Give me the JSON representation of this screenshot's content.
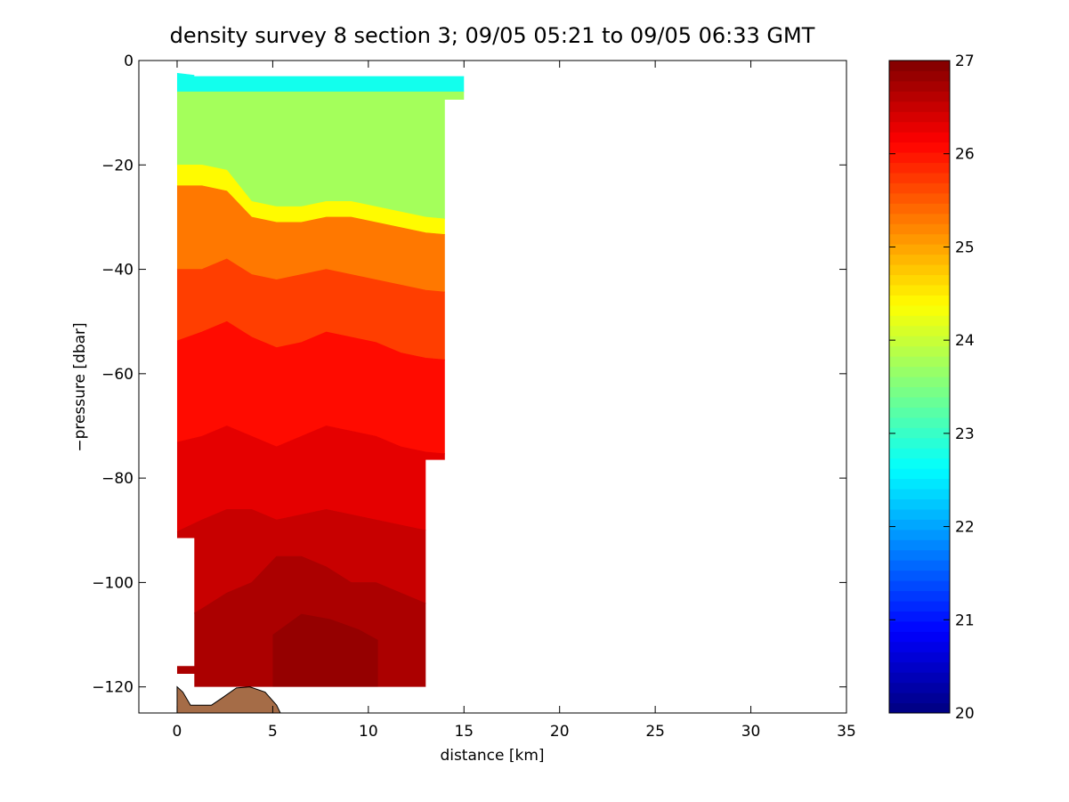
{
  "chart_data": {
    "type": "heatmap",
    "title": "density survey 8 section 3; 09/05 05:21 to 09/05 06:33 GMT",
    "xlabel": "distance [km]",
    "ylabel": "−pressure [dbar]",
    "xlim": [
      -2,
      35
    ],
    "ylim": [
      -125,
      0
    ],
    "xticks": [
      0,
      5,
      10,
      15,
      20,
      25,
      30,
      35
    ],
    "yticks": [
      0,
      -20,
      -40,
      -60,
      -80,
      -100,
      -120
    ],
    "ytick_labels": [
      "0",
      "−20",
      "−40",
      "−60",
      "−80",
      "−100",
      "−120"
    ],
    "grid": false,
    "colorbar": {
      "colormap": "jet",
      "min": 20,
      "max": 27,
      "ticks": [
        20,
        21,
        22,
        23,
        24,
        25,
        26,
        27
      ]
    },
    "density_field": {
      "x_km": [
        0.0,
        1.3,
        2.6,
        3.9,
        5.2,
        6.5,
        7.8,
        9.1,
        10.4,
        11.7,
        13.0,
        14.0
      ],
      "layers": [
        {
          "sigma": 22.75,
          "top_depth": [
            -2,
            -3,
            -3,
            -3,
            -3,
            -3,
            -3,
            -3,
            -3,
            -3,
            -3,
            -3
          ],
          "bottom_depth": [
            -6,
            -6,
            -6,
            -6,
            -6,
            -6,
            -6,
            -6,
            -6,
            -6,
            -6,
            -6
          ]
        },
        {
          "sigma": 23.75,
          "top_depth": [
            -6,
            -6,
            -6,
            -6,
            -6,
            -6,
            -6,
            -6,
            -6,
            -6,
            -6,
            -6
          ],
          "bottom_depth": [
            -20,
            -20,
            -21,
            -27,
            -28,
            -28,
            -27,
            -27,
            -28,
            -29,
            -30,
            -31
          ]
        },
        {
          "sigma": 24.4,
          "top_depth": [
            -20,
            -20,
            -21,
            -27,
            -28,
            -28,
            -27,
            -27,
            -28,
            -29,
            -30,
            -31
          ],
          "bottom_depth": [
            -24,
            -24,
            -25,
            -30,
            -31,
            -31,
            -30,
            -30,
            -31,
            -32,
            -33,
            -34
          ]
        },
        {
          "sigma": 25.3,
          "top_depth": [
            -24,
            -24,
            -25,
            -30,
            -31,
            -31,
            -30,
            -30,
            -31,
            -32,
            -33,
            -34
          ],
          "bottom_depth": [
            -40,
            -40,
            -38,
            -41,
            -42,
            -41,
            -40,
            -41,
            -42,
            -43,
            -44,
            -45
          ]
        },
        {
          "sigma": 25.7,
          "top_depth": [
            -40,
            -40,
            -38,
            -41,
            -42,
            -41,
            -40,
            -41,
            -42,
            -43,
            -44,
            -45
          ],
          "bottom_depth": [
            -55,
            -52,
            -50,
            -53,
            -55,
            -54,
            -52,
            -53,
            -54,
            -56,
            -57,
            -58
          ]
        },
        {
          "sigma": 26.05,
          "top_depth": [
            -55,
            -52,
            -50,
            -53,
            -55,
            -54,
            -52,
            -53,
            -54,
            -56,
            -57,
            -58
          ],
          "bottom_depth": [
            -74,
            -72,
            -70,
            -72,
            -74,
            -72,
            -70,
            -71,
            -72,
            -74,
            -75,
            -76
          ]
        },
        {
          "sigma": 26.3,
          "top_depth": [
            -74,
            -72,
            -70,
            -72,
            -74,
            -72,
            -70,
            -71,
            -72,
            -74,
            -75,
            -76
          ],
          "bottom_depth": [
            -92,
            -88,
            -86,
            -86,
            -88,
            -87,
            -86,
            -87,
            -88,
            -89,
            -90,
            -92
          ]
        },
        {
          "sigma": 26.5,
          "top_depth": [
            -92,
            -88,
            -86,
            -86,
            -88,
            -87,
            -86,
            -87,
            -88,
            -89,
            -90,
            -92
          ],
          "bottom_depth": [
            -110,
            -105,
            -102,
            -100,
            -95,
            -95,
            -97,
            -100,
            -100,
            -102,
            -104,
            -108
          ]
        },
        {
          "sigma": 26.7,
          "top_depth": [
            -110,
            -105,
            -102,
            -100,
            -95,
            -95,
            -97,
            -100,
            -100,
            -102,
            -104,
            -108
          ],
          "bottom_depth": [
            -120,
            -120,
            -120,
            -120,
            -120,
            -120,
            -120,
            -120,
            -120,
            -120,
            -120,
            -120
          ]
        }
      ],
      "deep_core": {
        "sigma": 26.85,
        "x_km": [
          5.0,
          6.5,
          8.0,
          9.5,
          10.5
        ],
        "top_depth": [
          -110,
          -106,
          -107,
          -109,
          -111
        ],
        "bottom_depth": [
          -120,
          -120,
          -120,
          -120,
          -120
        ]
      }
    },
    "data_coverage": [
      {
        "x_km": [
          0,
          0.9
        ],
        "depth": [
          -2,
          -91.5
        ]
      },
      {
        "x_km": [
          0.9,
          14.0
        ],
        "depth": [
          -3,
          -76.5
        ]
      },
      {
        "x_km": [
          14.0,
          15.0
        ],
        "depth": [
          -3,
          -7.5
        ]
      },
      {
        "x_km": [
          0.9,
          13.0
        ],
        "depth": [
          -76.5,
          -120
        ]
      },
      {
        "x_km": [
          0,
          0.9
        ],
        "depth": [
          -116,
          -117.5
        ]
      }
    ],
    "seafloor": {
      "x_km": [
        0,
        0.3,
        0.7,
        1.8,
        2.4,
        3.1,
        3.8,
        4.6,
        5.2,
        5.4
      ],
      "depth": [
        -120,
        -121,
        -123.5,
        -123.5,
        -122,
        -120.2,
        -120,
        -121,
        -123.5,
        -125
      ]
    },
    "colors": {
      "seafloor_fill": "#a56c47"
    }
  }
}
